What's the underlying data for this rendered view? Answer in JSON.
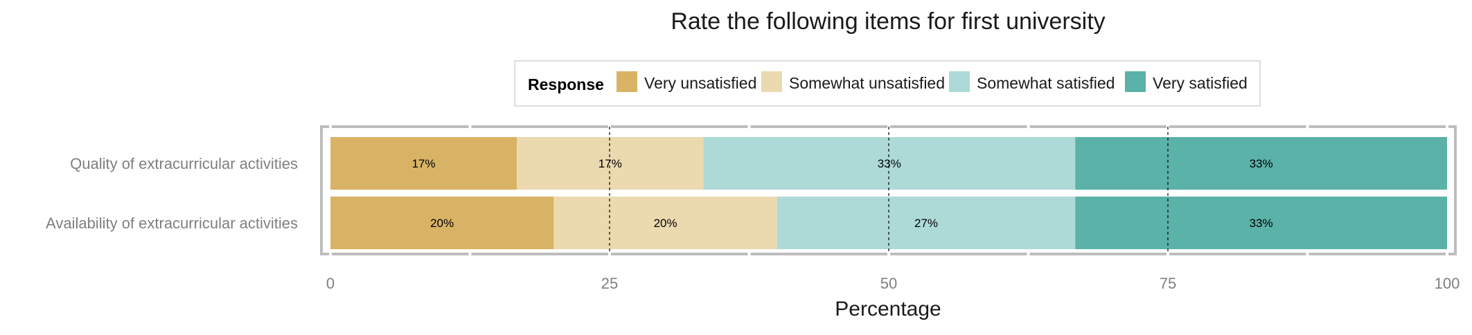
{
  "chart_data": {
    "type": "bar",
    "orientation": "horizontal",
    "stacked": true,
    "title": "Rate the following items for first university",
    "xlabel": "Percentage",
    "ylabel": "",
    "xlim": [
      0,
      100
    ],
    "xticks": [
      0,
      25,
      50,
      75,
      100
    ],
    "grid": true,
    "legend_position": "top",
    "legend_title": "Response",
    "categories": [
      "Quality of extracurricular activities",
      "Availability of extracurricular activities"
    ],
    "series": [
      {
        "name": "Very unsatisfied",
        "color": "#D9B365",
        "values": [
          16.7,
          20
        ],
        "labels": [
          "17%",
          "20%"
        ]
      },
      {
        "name": "Somewhat unsatisfied",
        "color": "#EBD9B0",
        "values": [
          16.7,
          20
        ],
        "labels": [
          "17%",
          "20%"
        ]
      },
      {
        "name": "Somewhat satisfied",
        "color": "#ADDAD7",
        "values": [
          33.3,
          26.7
        ],
        "labels": [
          "33%",
          "27%"
        ]
      },
      {
        "name": "Very satisfied",
        "color": "#5AB2A8",
        "values": [
          33.3,
          33.3
        ],
        "labels": [
          "33%",
          "33%"
        ]
      }
    ],
    "reference_lines": [
      25,
      50,
      75
    ]
  }
}
